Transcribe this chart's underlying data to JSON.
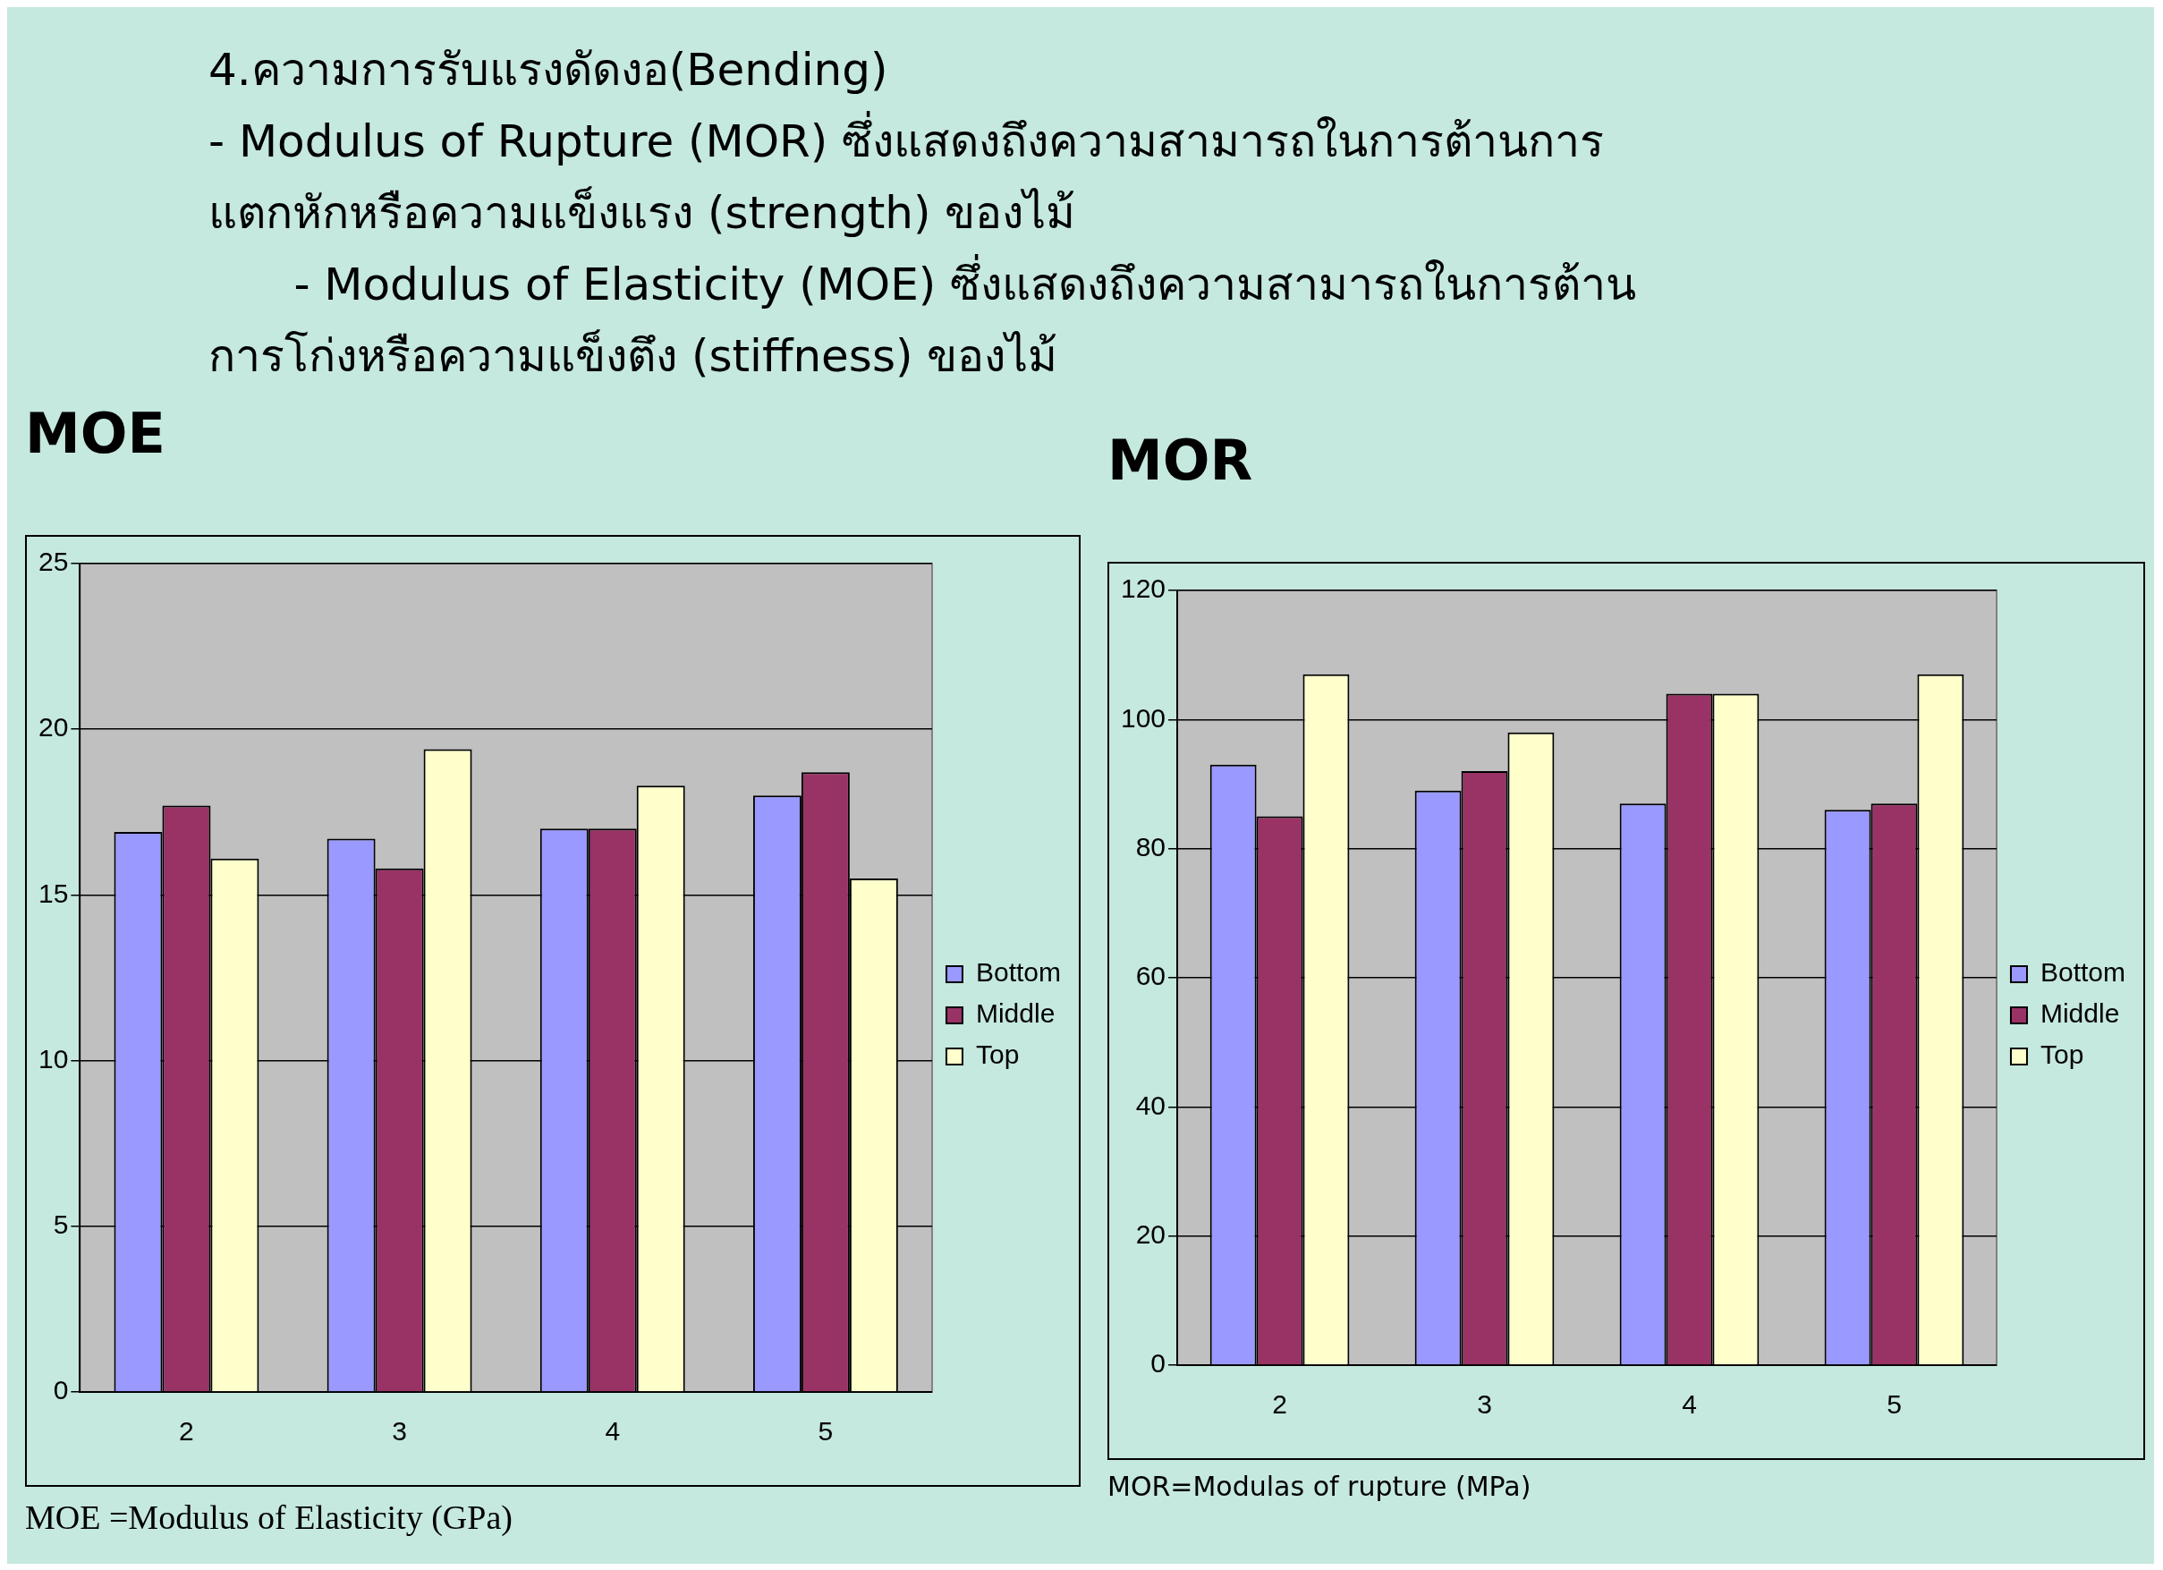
{
  "chart_data": [
    {
      "type": "bar",
      "title": "MOE",
      "subtitle": "4.ความการรับแรงดัดงอ(Bending)\n- Modulus of Rupture (MOR) ซึ่งแสดงถึงความสามารถในการต้านการ\nแตกหักหรือความแข็งแรง (strength) ของไม้\n      - Modulus of Elasticity (MOE) ซึ่งแสดงถึงความสามารถในการต้าน\nการโก่งหรือความแข็งตึง (stiffness) ของไม้",
      "categories": [
        "2",
        "3",
        "4",
        "5"
      ],
      "series": [
        {
          "name": "Bottom",
          "color": "#9999ff",
          "values": [
            16.9,
            16.7,
            17.0,
            18.0
          ]
        },
        {
          "name": "Middle",
          "color": "#993366",
          "values": [
            17.7,
            15.8,
            17.0,
            18.7
          ]
        },
        {
          "name": "Top",
          "color": "#ffffcc",
          "values": [
            16.1,
            19.4,
            18.3,
            15.5
          ]
        }
      ],
      "ylim": [
        0,
        25
      ],
      "yticks": [
        0,
        5,
        10,
        15,
        20,
        25
      ],
      "grid": "y",
      "legend": "right",
      "annotations": [
        "MOE =Modulus of Elasticity (GPa)"
      ]
    },
    {
      "type": "bar",
      "title": "MOR",
      "categories": [
        "2",
        "3",
        "4",
        "5"
      ],
      "series": [
        {
          "name": "Bottom",
          "color": "#9999ff",
          "values": [
            93,
            89,
            87,
            86
          ]
        },
        {
          "name": "Middle",
          "color": "#993366",
          "values": [
            85,
            92,
            104,
            87
          ]
        },
        {
          "name": "Top",
          "color": "#ffffcc",
          "values": [
            107,
            98,
            104,
            107
          ]
        }
      ],
      "ylim": [
        0,
        120
      ],
      "yticks": [
        0,
        20,
        40,
        60,
        80,
        100,
        120
      ],
      "grid": "y",
      "legend": "right",
      "annotations": [
        "MOR=Modulas of rupture (MPa)"
      ]
    }
  ]
}
